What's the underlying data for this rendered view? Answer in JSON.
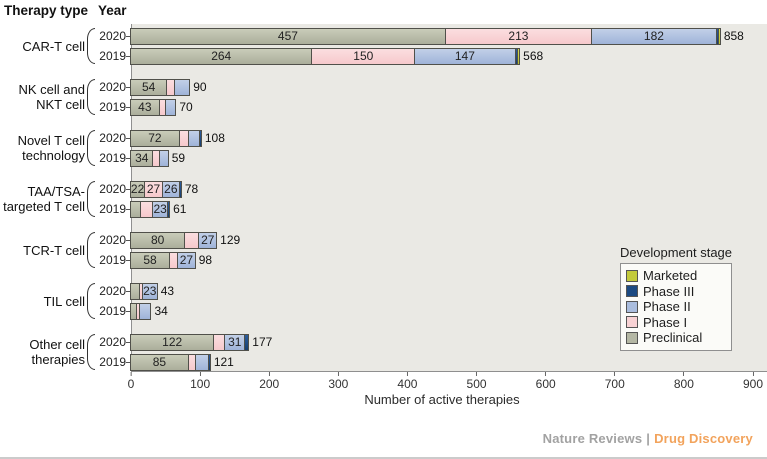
{
  "header": {
    "therapy_type": "Therapy type",
    "year": "Year"
  },
  "footer": {
    "brand_left": "Nature Reviews",
    "separator": "|",
    "brand_right": "Drug Discovery",
    "brand_right_color": "#f2a35c",
    "brand_left_color": "#a2a2a2"
  },
  "chart_data": {
    "type": "bar",
    "orientation": "horizontal-stacked",
    "title": "",
    "xlabel": "Number of active therapies",
    "xlim": [
      0,
      900
    ],
    "x_ticks": [
      0,
      100,
      200,
      300,
      400,
      500,
      600,
      700,
      800,
      900
    ],
    "grid": false,
    "panel_background": "#eae9e4",
    "stage_order_in_bar": [
      "Preclinical",
      "Phase I",
      "Phase II",
      "Phase III",
      "Marketed"
    ],
    "colors": {
      "Marketed": "#c3ca3b",
      "Phase III": "#1c4a82",
      "Phase II": "#aabdde",
      "Phase I": "#f8d2d4",
      "Preclinical": "#b4b7a4"
    },
    "legend": {
      "title": "Development stage",
      "position": "inside-right",
      "entries": [
        "Marketed",
        "Phase III",
        "Phase II",
        "Phase I",
        "Preclinical"
      ]
    },
    "groups": [
      {
        "therapy": [
          "CAR-T cell"
        ],
        "rows": [
          {
            "year": "2020",
            "total": 858,
            "total_label": "858",
            "segments": [
              {
                "stage": "Preclinical",
                "value": 457,
                "label": "457"
              },
              {
                "stage": "Phase I",
                "value": 213,
                "label": "213"
              },
              {
                "stage": "Phase II",
                "value": 182,
                "label": "182"
              },
              {
                "stage": "Phase III",
                "value": 4,
                "label": ""
              },
              {
                "stage": "Marketed",
                "value": 2,
                "label": ""
              }
            ]
          },
          {
            "year": "2019",
            "total": 568,
            "total_label": "568",
            "segments": [
              {
                "stage": "Preclinical",
                "value": 264,
                "label": "264"
              },
              {
                "stage": "Phase I",
                "value": 150,
                "label": "150"
              },
              {
                "stage": "Phase II",
                "value": 147,
                "label": "147"
              },
              {
                "stage": "Phase III",
                "value": 5,
                "label": ""
              },
              {
                "stage": "Marketed",
                "value": 2,
                "label": ""
              }
            ]
          }
        ]
      },
      {
        "therapy": [
          "NK cell and",
          "NKT cell"
        ],
        "rows": [
          {
            "year": "2020",
            "total": 90,
            "total_label": "90",
            "segments": [
              {
                "stage": "Preclinical",
                "value": 54,
                "label": "54"
              },
              {
                "stage": "Phase I",
                "value": 13,
                "label": ""
              },
              {
                "stage": "Phase II",
                "value": 23,
                "label": ""
              }
            ]
          },
          {
            "year": "2019",
            "total": 70,
            "total_label": "70",
            "segments": [
              {
                "stage": "Preclinical",
                "value": 43,
                "label": "43"
              },
              {
                "stage": "Phase I",
                "value": 11,
                "label": ""
              },
              {
                "stage": "Phase II",
                "value": 16,
                "label": ""
              }
            ]
          }
        ]
      },
      {
        "therapy": [
          "Novel T cell",
          "technology"
        ],
        "rows": [
          {
            "year": "2020",
            "total": 108,
            "total_label": "108",
            "segments": [
              {
                "stage": "Preclinical",
                "value": 72,
                "label": "72"
              },
              {
                "stage": "Phase I",
                "value": 15,
                "label": ""
              },
              {
                "stage": "Phase II",
                "value": 17,
                "label": ""
              },
              {
                "stage": "Phase III",
                "value": 4,
                "label": ""
              }
            ]
          },
          {
            "year": "2019",
            "total": 59,
            "total_label": "59",
            "segments": [
              {
                "stage": "Preclinical",
                "value": 34,
                "label": "34"
              },
              {
                "stage": "Phase I",
                "value": 11,
                "label": ""
              },
              {
                "stage": "Phase II",
                "value": 14,
                "label": ""
              }
            ]
          }
        ]
      },
      {
        "therapy": [
          "TAA/TSA-",
          "targeted T cell"
        ],
        "rows": [
          {
            "year": "2020",
            "total": 78,
            "total_label": "78",
            "segments": [
              {
                "stage": "Preclinical",
                "value": 22,
                "label": "22"
              },
              {
                "stage": "Phase I",
                "value": 27,
                "label": "27"
              },
              {
                "stage": "Phase II",
                "value": 26,
                "label": "26"
              },
              {
                "stage": "Phase III",
                "value": 3,
                "label": ""
              }
            ]
          },
          {
            "year": "2019",
            "total": 61,
            "total_label": "61",
            "segments": [
              {
                "stage": "Preclinical",
                "value": 16,
                "label": ""
              },
              {
                "stage": "Phase I",
                "value": 19,
                "label": ""
              },
              {
                "stage": "Phase II",
                "value": 23,
                "label": "23"
              },
              {
                "stage": "Phase III",
                "value": 3,
                "label": ""
              }
            ]
          }
        ]
      },
      {
        "therapy": [
          "TCR-T cell"
        ],
        "rows": [
          {
            "year": "2020",
            "total": 129,
            "total_label": "129",
            "segments": [
              {
                "stage": "Preclinical",
                "value": 80,
                "label": "80"
              },
              {
                "stage": "Phase I",
                "value": 22,
                "label": ""
              },
              {
                "stage": "Phase II",
                "value": 27,
                "label": "27"
              }
            ]
          },
          {
            "year": "2019",
            "total": 98,
            "total_label": "98",
            "segments": [
              {
                "stage": "Preclinical",
                "value": 58,
                "label": "58"
              },
              {
                "stage": "Phase I",
                "value": 13,
                "label": ""
              },
              {
                "stage": "Phase II",
                "value": 27,
                "label": "27"
              }
            ]
          }
        ]
      },
      {
        "therapy": [
          "TIL cell"
        ],
        "rows": [
          {
            "year": "2020",
            "total": 43,
            "total_label": "43",
            "segments": [
              {
                "stage": "Preclinical",
                "value": 14,
                "label": ""
              },
              {
                "stage": "Phase I",
                "value": 6,
                "label": ""
              },
              {
                "stage": "Phase II",
                "value": 23,
                "label": "23"
              }
            ]
          },
          {
            "year": "2019",
            "total": 34,
            "total_label": "34",
            "segments": [
              {
                "stage": "Preclinical",
                "value": 10,
                "label": ""
              },
              {
                "stage": "Phase I",
                "value": 6,
                "label": ""
              },
              {
                "stage": "Phase II",
                "value": 18,
                "label": ""
              }
            ]
          }
        ]
      },
      {
        "therapy": [
          "Other cell",
          "therapies"
        ],
        "rows": [
          {
            "year": "2020",
            "total": 177,
            "total_label": "177",
            "segments": [
              {
                "stage": "Preclinical",
                "value": 122,
                "label": "122"
              },
              {
                "stage": "Phase I",
                "value": 17,
                "label": ""
              },
              {
                "stage": "Phase II",
                "value": 31,
                "label": "31"
              },
              {
                "stage": "Phase III",
                "value": 7,
                "label": ""
              }
            ]
          },
          {
            "year": "2019",
            "total": 121,
            "total_label": "121",
            "segments": [
              {
                "stage": "Preclinical",
                "value": 85,
                "label": "85"
              },
              {
                "stage": "Phase I",
                "value": 12,
                "label": ""
              },
              {
                "stage": "Phase II",
                "value": 20,
                "label": ""
              },
              {
                "stage": "Phase III",
                "value": 4,
                "label": ""
              }
            ]
          }
        ]
      }
    ]
  }
}
